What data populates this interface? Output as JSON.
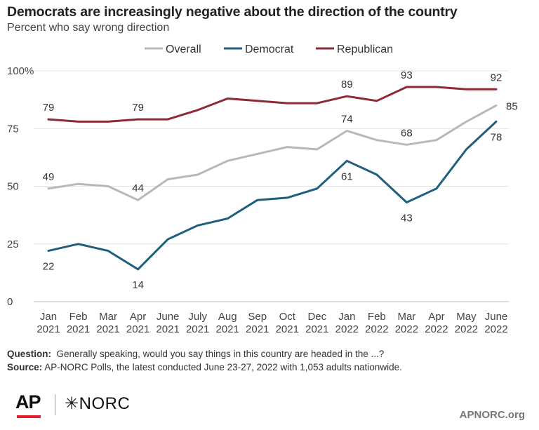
{
  "header": {
    "title": "Democrats are increasingly negative about the direction of the country",
    "subtitle": "Percent who say wrong direction"
  },
  "footer": {
    "question_label": "Question:",
    "question_text": "Generally speaking, would you say things in this country are headed in the ...?",
    "source_label": "Source:",
    "source_text": "AP-NORC Polls, the latest conducted June 23-27, 2022 with 1,053 adults nationwide."
  },
  "branding": {
    "ap_logo": "AP",
    "norc_logo": "NORC",
    "site": "APNORC.org"
  },
  "chart_data": {
    "type": "line",
    "categories": [
      [
        "Jan",
        "2021"
      ],
      [
        "Feb",
        "2021"
      ],
      [
        "Mar",
        "2021"
      ],
      [
        "Apr",
        "2021"
      ],
      [
        "June",
        "2021"
      ],
      [
        "July",
        "2021"
      ],
      [
        "Aug",
        "2021"
      ],
      [
        "Sep",
        "2021"
      ],
      [
        "Oct",
        "2021"
      ],
      [
        "Dec",
        "2021"
      ],
      [
        "Jan",
        "2022"
      ],
      [
        "Feb",
        "2022"
      ],
      [
        "Mar",
        "2022"
      ],
      [
        "Apr",
        "2022"
      ],
      [
        "May",
        "2022"
      ],
      [
        "June",
        "2022"
      ]
    ],
    "yticks": [
      "0",
      "25",
      "50",
      "75",
      "100%"
    ],
    "ylim": [
      0,
      100
    ],
    "grid": true,
    "legend_position": "top",
    "series": [
      {
        "name": "Overall",
        "color": "#b8b8b8",
        "values": [
          49,
          51,
          50,
          44,
          53,
          55,
          61,
          64,
          67,
          66,
          74,
          70,
          68,
          70,
          78,
          85
        ],
        "labels": [
          {
            "index": 0,
            "text": "49",
            "position": "above"
          },
          {
            "index": 3,
            "text": "44",
            "position": "above"
          },
          {
            "index": 10,
            "text": "74",
            "position": "above"
          },
          {
            "index": 12,
            "text": "68",
            "position": "above"
          },
          {
            "index": 15,
            "text": "85",
            "position": "right"
          }
        ]
      },
      {
        "name": "Democrat",
        "color": "#1f5f7e",
        "values": [
          22,
          25,
          22,
          14,
          27,
          33,
          36,
          44,
          45,
          49,
          61,
          55,
          43,
          49,
          66,
          78
        ],
        "labels": [
          {
            "index": 0,
            "text": "22",
            "position": "below"
          },
          {
            "index": 3,
            "text": "14",
            "position": "below"
          },
          {
            "index": 10,
            "text": "61",
            "position": "below"
          },
          {
            "index": 12,
            "text": "43",
            "position": "below"
          },
          {
            "index": 15,
            "text": "78",
            "position": "below"
          }
        ]
      },
      {
        "name": "Republican",
        "color": "#8c2a35",
        "values": [
          79,
          78,
          78,
          79,
          79,
          83,
          88,
          87,
          86,
          86,
          89,
          87,
          93,
          93,
          92,
          92
        ],
        "labels": [
          {
            "index": 0,
            "text": "79",
            "position": "above"
          },
          {
            "index": 3,
            "text": "79",
            "position": "above"
          },
          {
            "index": 10,
            "text": "89",
            "position": "above"
          },
          {
            "index": 12,
            "text": "93",
            "position": "above"
          },
          {
            "index": 15,
            "text": "92",
            "position": "above"
          }
        ]
      }
    ]
  }
}
